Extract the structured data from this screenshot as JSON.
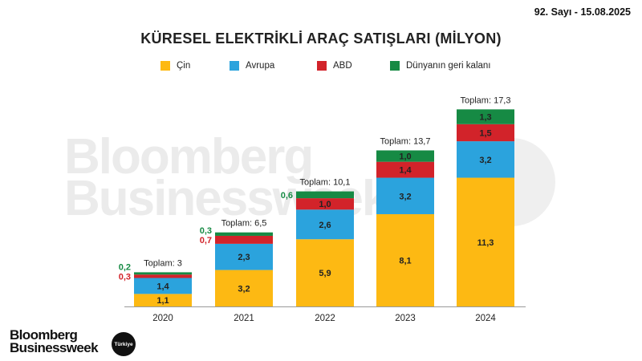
{
  "header": {
    "issue": "92. Sayı - 15.08.2025"
  },
  "watermark": {
    "line1": "Bloomberg",
    "line2": "Businessweek",
    "badge": "Türkiye"
  },
  "footer": {
    "logo_line1": "Bloomberg",
    "logo_line2": "Businessweek",
    "badge": "Türkiye"
  },
  "chart_data": {
    "type": "bar",
    "stacked": true,
    "title": "KÜRESEL ELEKTRİKLİ ARAÇ SATIŞLARI (MİLYON)",
    "categories": [
      "2020",
      "2021",
      "2022",
      "2023",
      "2024"
    ],
    "series": [
      {
        "name": "Çin",
        "color": "#FDB913",
        "values": [
          1.1,
          3.2,
          5.9,
          8.1,
          11.3
        ],
        "labels": [
          "1,1",
          "3,2",
          "5,9",
          "8,1",
          "11,3"
        ]
      },
      {
        "name": "Avrupa",
        "color": "#2BA3DD",
        "values": [
          1.4,
          2.3,
          2.6,
          3.2,
          3.2
        ],
        "labels": [
          "1,4",
          "2,3",
          "2,6",
          "3,2",
          "3,2"
        ]
      },
      {
        "name": "ABD",
        "color": "#D2232A",
        "values": [
          0.3,
          0.7,
          1.0,
          1.4,
          1.5
        ],
        "labels": [
          "0,3",
          "0,7",
          "1,0",
          "1,4",
          "1,5"
        ]
      },
      {
        "name": "Dünyanın geri kalanı",
        "color": "#168A44",
        "values": [
          0.2,
          0.3,
          0.6,
          1.0,
          1.3
        ],
        "labels": [
          "0,2",
          "0,3",
          "0,6",
          "1,0",
          "1,3"
        ]
      }
    ],
    "totals": [
      "Toplam: 3",
      "Toplam: 6,5",
      "Toplam: 10,1",
      "Toplam: 13,7",
      "Toplam: 17,3"
    ],
    "legend_position": "top",
    "grid": false
  }
}
